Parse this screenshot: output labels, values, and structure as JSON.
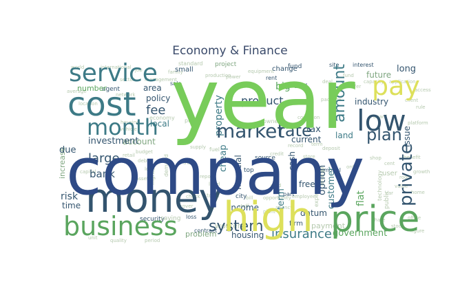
{
  "title": "Economy & Finance",
  "palette": {
    "lime": "#78cc5a",
    "green": "#5aa55e",
    "sage": "#7fa680",
    "teal": "#3d7a86",
    "navy": "#2e4a86",
    "slate": "#33546e",
    "yellow": "#dde05b",
    "pale": "#b5c9ae"
  },
  "words": [
    {
      "text": "year",
      "color": "lime"
    },
    {
      "text": "company",
      "color": "navy"
    },
    {
      "text": "money",
      "color": "slate"
    },
    {
      "text": "high",
      "color": "yellow"
    },
    {
      "text": "cost",
      "color": "teal"
    },
    {
      "text": "service",
      "color": "teal"
    },
    {
      "text": "business",
      "color": "green"
    },
    {
      "text": "price",
      "color": "green"
    },
    {
      "text": "month",
      "color": "teal"
    },
    {
      "text": "pay",
      "color": "yellow"
    },
    {
      "text": "low",
      "color": "slate"
    },
    {
      "text": "market",
      "color": "slate"
    },
    {
      "text": "plan",
      "color": "slate"
    },
    {
      "text": "rate",
      "color": "slate"
    },
    {
      "text": "system",
      "color": "slate"
    },
    {
      "text": "fee",
      "color": "slate"
    },
    {
      "text": "private",
      "color": "slate"
    },
    {
      "text": "amount",
      "color": "teal"
    },
    {
      "text": "insurance",
      "color": "teal"
    },
    {
      "text": "government",
      "color": "green"
    },
    {
      "text": "investment",
      "color": "slate"
    },
    {
      "text": "large",
      "color": "slate"
    },
    {
      "text": "bank",
      "color": "slate"
    },
    {
      "text": "risk",
      "color": "slate"
    },
    {
      "text": "time",
      "color": "slate"
    },
    {
      "text": "due",
      "color": "slate"
    },
    {
      "text": "local",
      "color": "teal"
    },
    {
      "text": "area",
      "color": "slate"
    },
    {
      "text": "policy",
      "color": "slate"
    },
    {
      "text": "property",
      "color": "teal"
    },
    {
      "text": "product",
      "color": "slate"
    },
    {
      "text": "industry",
      "color": "slate"
    },
    {
      "text": "future",
      "color": "sage"
    },
    {
      "text": "long",
      "color": "slate"
    },
    {
      "text": "tax",
      "color": "slate"
    },
    {
      "text": "land",
      "color": "teal"
    },
    {
      "text": "current",
      "color": "slate"
    },
    {
      "text": "issue",
      "color": "slate"
    },
    {
      "text": "account",
      "color": "sage"
    },
    {
      "text": "cheap",
      "color": "teal"
    },
    {
      "text": "income",
      "color": "slate"
    },
    {
      "text": "housing",
      "color": "slate"
    },
    {
      "text": "option",
      "color": "slate"
    },
    {
      "text": "customer",
      "color": "teal"
    },
    {
      "text": "flat",
      "color": "green"
    },
    {
      "text": "free",
      "color": "slate"
    },
    {
      "text": "datum",
      "color": "slate"
    },
    {
      "text": "increase",
      "color": "sage"
    },
    {
      "text": "number",
      "color": "green"
    },
    {
      "text": "agent",
      "color": "slate"
    },
    {
      "text": "small",
      "color": "slate"
    },
    {
      "text": "change",
      "color": "slate"
    },
    {
      "text": "fund",
      "color": "slate"
    },
    {
      "text": "big",
      "color": "green"
    },
    {
      "text": "deal",
      "color": "slate"
    },
    {
      "text": "project",
      "color": "sage"
    },
    {
      "text": "interest",
      "color": "slate"
    },
    {
      "text": "site",
      "color": "slate"
    },
    {
      "text": "top",
      "color": "slate"
    },
    {
      "text": "source",
      "color": "slate"
    },
    {
      "text": "financial",
      "color": "slate"
    },
    {
      "text": "cash",
      "color": "slate"
    },
    {
      "text": "term",
      "color": "teal"
    },
    {
      "text": "firm",
      "color": "slate"
    },
    {
      "text": "problem",
      "color": "sage"
    },
    {
      "text": "payment",
      "color": "pale"
    },
    {
      "text": "worker",
      "color": "pale"
    },
    {
      "text": "city",
      "color": "slate"
    },
    {
      "text": "user",
      "color": "pale"
    },
    {
      "text": "security",
      "color": "slate"
    },
    {
      "text": "saving",
      "color": "pale"
    },
    {
      "text": "loss",
      "color": "slate"
    },
    {
      "text": "economy",
      "color": "pale"
    },
    {
      "text": "profit",
      "color": "pale"
    },
    {
      "text": "owner",
      "color": "pale"
    },
    {
      "text": "standard",
      "color": "pale"
    },
    {
      "text": "management",
      "color": "pale"
    },
    {
      "text": "part",
      "color": "slate"
    },
    {
      "text": "model",
      "color": "slate"
    },
    {
      "text": "sale",
      "color": "slate"
    },
    {
      "text": "rent",
      "color": "slate"
    },
    {
      "text": "energy",
      "color": "pale"
    },
    {
      "text": "technology",
      "color": "pale"
    },
    {
      "text": "public",
      "color": "pale"
    },
    {
      "text": "contract",
      "color": "slate"
    },
    {
      "text": "flight",
      "color": "pale"
    },
    {
      "text": "demand",
      "color": "pale"
    },
    {
      "text": "fuel",
      "color": "pale"
    },
    {
      "text": "total",
      "color": "pale"
    },
    {
      "text": "country",
      "color": "pale"
    },
    {
      "text": "expensive",
      "color": "pale"
    },
    {
      "text": "world",
      "color": "pale"
    },
    {
      "text": "international",
      "color": "pale"
    },
    {
      "text": "average",
      "color": "pale"
    },
    {
      "text": "location",
      "color": "pale"
    },
    {
      "text": "package",
      "color": "pale"
    },
    {
      "text": "platform",
      "color": "pale"
    },
    {
      "text": "benefit",
      "color": "pale"
    },
    {
      "text": "budget",
      "color": "pale"
    },
    {
      "text": "trade",
      "color": "pale"
    },
    {
      "text": "credit",
      "color": "pale"
    },
    {
      "text": "employee",
      "color": "pale"
    },
    {
      "text": "report",
      "color": "pale"
    },
    {
      "text": "staff",
      "color": "pale"
    },
    {
      "text": "agency",
      "color": "pale"
    },
    {
      "text": "capital",
      "color": "pale"
    },
    {
      "text": "supply",
      "color": "pale"
    },
    {
      "text": "growth",
      "color": "pale"
    },
    {
      "text": "value",
      "color": "pale"
    },
    {
      "text": "office",
      "color": "pale"
    },
    {
      "text": "share",
      "color": "pale"
    },
    {
      "text": "stock",
      "color": "pale"
    },
    {
      "text": "order",
      "color": "pale"
    },
    {
      "text": "record",
      "color": "pale"
    },
    {
      "text": "opportunity",
      "color": "pale"
    },
    {
      "text": "period",
      "color": "pale"
    },
    {
      "text": "quality",
      "color": "pale"
    },
    {
      "text": "unit",
      "color": "pale"
    },
    {
      "text": "figure",
      "color": "pale"
    },
    {
      "text": "access",
      "color": "pale"
    },
    {
      "text": "capacity",
      "color": "pale"
    },
    {
      "text": "application",
      "color": "pale"
    },
    {
      "text": "condition",
      "color": "pale"
    },
    {
      "text": "production",
      "color": "pale"
    },
    {
      "text": "power",
      "color": "pale"
    },
    {
      "text": "equipment",
      "color": "pale"
    },
    {
      "text": "family",
      "color": "pale"
    },
    {
      "text": "job",
      "color": "pale"
    },
    {
      "text": "sector",
      "color": "pale"
    },
    {
      "text": "network",
      "color": "pale"
    },
    {
      "text": "housing",
      "color": "pale"
    },
    {
      "text": "vehicle",
      "color": "pale"
    },
    {
      "text": "retail",
      "color": "pale"
    },
    {
      "text": "debt",
      "color": "pale"
    },
    {
      "text": "loan",
      "color": "pale"
    },
    {
      "text": "asset",
      "color": "pale"
    },
    {
      "text": "cover",
      "color": "pale"
    },
    {
      "text": "check",
      "color": "pale"
    },
    {
      "text": "level",
      "color": "pale"
    },
    {
      "text": "bill",
      "color": "pale"
    },
    {
      "text": "plant",
      "color": "pale"
    },
    {
      "text": "card",
      "color": "pale"
    },
    {
      "text": "store",
      "color": "pale"
    },
    {
      "text": "term",
      "color": "pale"
    },
    {
      "text": "deposit",
      "color": "pale"
    },
    {
      "text": "shop",
      "color": "pale"
    },
    {
      "text": "cent",
      "color": "pale"
    },
    {
      "text": "room",
      "color": "pale"
    },
    {
      "text": "car",
      "color": "pale"
    },
    {
      "text": "home",
      "color": "pale"
    },
    {
      "text": "board",
      "color": "pale"
    },
    {
      "text": "rule",
      "color": "pale"
    },
    {
      "text": "client",
      "color": "pale"
    },
    {
      "text": "offer",
      "color": "pale"
    },
    {
      "text": "deal",
      "color": "pale"
    },
    {
      "text": "fund",
      "color": "pale"
    },
    {
      "text": "money",
      "color": "pale"
    }
  ]
}
